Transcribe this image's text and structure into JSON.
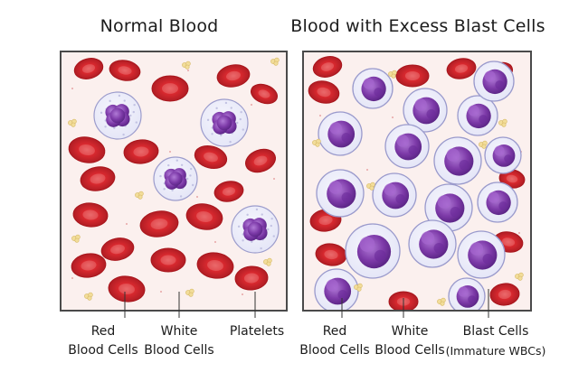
{
  "titles": {
    "normal": "Normal Blood",
    "excess": "Blood with Excess Blast Cells"
  },
  "labels": {
    "left_rbc": [
      "Red",
      "Blood Cells"
    ],
    "left_wbc": [
      "White",
      "Blood Cells"
    ],
    "left_platelets": [
      "Platelets"
    ],
    "right_rbc": [
      "Red",
      "Blood Cells"
    ],
    "right_wbc": [
      "White",
      "Blood Cells"
    ],
    "right_blast": [
      "Blast Cells",
      "(Immature WBCs)"
    ]
  },
  "colors": {
    "rbc": "#d9292f",
    "rbc_center": "#ea6a6c",
    "wbc_cyto": "#e5e6f7",
    "nucleus": "#7d3aa8",
    "platelet": "#f2dd9a",
    "panel_bg": "#fbf0ee",
    "border": "#4a4a4a"
  }
}
